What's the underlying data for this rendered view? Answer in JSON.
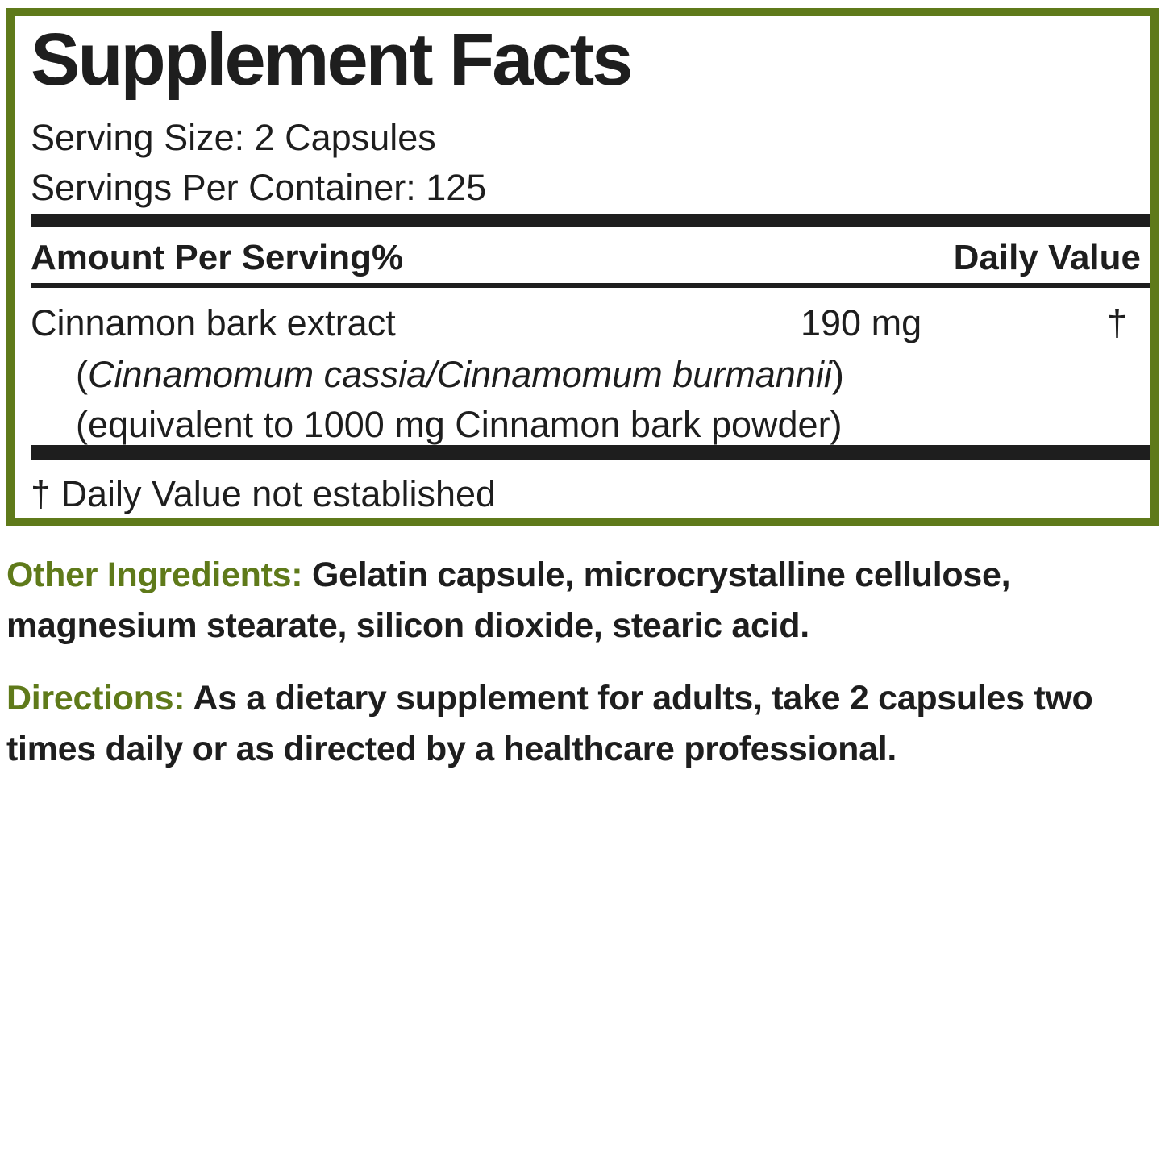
{
  "facts": {
    "title": "Supplement Facts",
    "serving_size": "Serving Size: 2 Capsules",
    "servings_per_container": "Servings Per Container: 125",
    "header_left": "Amount Per Serving%",
    "header_right": "Daily Value",
    "ingredient": {
      "name": "Cinnamon bark extract",
      "amount": "190 mg",
      "dv": "†",
      "latin_open": "(",
      "latin": "Cinnamomum cassia/Cinnamomum burmannii",
      "latin_close": ")",
      "equivalent": "(equivalent to 1000 mg Cinnamon bark powder)"
    },
    "footnote": "† Daily Value not established"
  },
  "other_ingredients": {
    "label": "Other Ingredients:",
    "text": " Gelatin capsule, microcrystalline cellulose, magnesium stearate, silicon dioxide, stearic acid."
  },
  "directions": {
    "label": "Directions:",
    "text": " As a dietary supplement for adults, take 2 capsules two times daily or as directed by a healthcare professional."
  },
  "colors": {
    "accent": "#5f7a1a",
    "text": "#1e1e1e"
  }
}
